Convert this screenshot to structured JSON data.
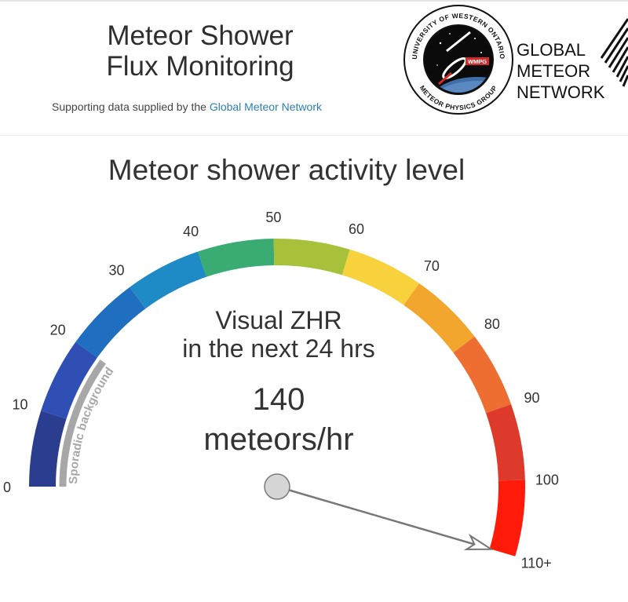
{
  "header": {
    "title_line1": "Meteor Shower",
    "title_line2": "Flux Monitoring",
    "tagline_prefix": "Supporting data supplied by the ",
    "tagline_link": "Global Meteor Network"
  },
  "logos": {
    "wmpg": {
      "ring_top": "UNIVERSITY OF WESTERN ONTARIO",
      "ring_bottom": "METEOR PHYSICS GROUP",
      "badge": "WMPG"
    },
    "gmn": {
      "line1": "GLOBAL",
      "line2": "METEOR",
      "line3": "NETWORK"
    }
  },
  "gauge": {
    "title": "Meteor shower activity level",
    "min": 0,
    "max": 110,
    "ticks": [
      {
        "value": 0,
        "label": "0"
      },
      {
        "value": 10,
        "label": "10"
      },
      {
        "value": 20,
        "label": "20"
      },
      {
        "value": 30,
        "label": "30"
      },
      {
        "value": 40,
        "label": "40"
      },
      {
        "value": 50,
        "label": "50"
      },
      {
        "value": 60,
        "label": "60"
      },
      {
        "value": 70,
        "label": "70"
      },
      {
        "value": 80,
        "label": "80"
      },
      {
        "value": 90,
        "label": "90"
      },
      {
        "value": 100,
        "label": "100"
      },
      {
        "value": 110,
        "label": "110+"
      }
    ],
    "segment_colors": [
      "#2a3d8f",
      "#2f4fb5",
      "#1f6ebf",
      "#1f8bc6",
      "#3aab73",
      "#a8c13b",
      "#f7d23c",
      "#f3a62d",
      "#ee6d30",
      "#de3a2c",
      "#ff1a0a"
    ],
    "sporadic_label": "Sporadic background",
    "sporadic_range": [
      0,
      20
    ],
    "sporadic_color": "#a7a7a7",
    "center_line1": "Visual ZHR",
    "center_line2": "in the next 24 hrs",
    "value": "140",
    "unit": "meteors/hr",
    "needle_value": 110
  }
}
